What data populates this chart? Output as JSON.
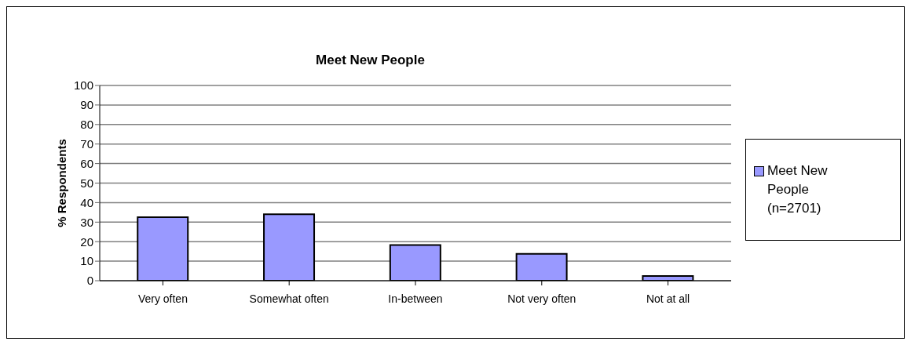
{
  "chart_data": {
    "type": "bar",
    "title": "Meet New People",
    "ylabel": "% Respondents",
    "categories": [
      "Very often",
      "Somewhat often",
      "In-between",
      "Not very often",
      "Not at all"
    ],
    "series": [
      {
        "name": "Meet New People (n=2701)",
        "color": "#9999ff",
        "values": [
          32.5,
          34,
          18.3,
          13.8,
          2.4
        ]
      }
    ],
    "ylim": [
      0,
      100
    ],
    "yticks": [
      0,
      10,
      20,
      30,
      40,
      50,
      60,
      70,
      80,
      90,
      100
    ],
    "grid": "y",
    "legend": "right"
  }
}
